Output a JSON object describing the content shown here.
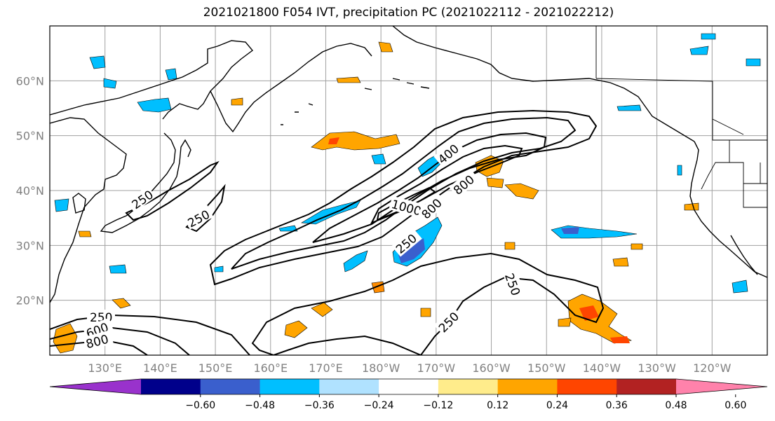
{
  "title": "2021021800 F054 IVT, precipitation PC (2021022112 - 2021022212)",
  "map": {
    "lat_labels": [
      {
        "text": "60°N",
        "lat": 60
      },
      {
        "text": "50°N",
        "lat": 50
      },
      {
        "text": "40°N",
        "lat": 40
      },
      {
        "text": "30°N",
        "lat": 30
      },
      {
        "text": "20°N",
        "lat": 20
      }
    ],
    "lon_labels": [
      {
        "text": "130°E",
        "lon": 130
      },
      {
        "text": "140°E",
        "lon": 140
      },
      {
        "text": "150°E",
        "lon": 150
      },
      {
        "text": "160°E",
        "lon": 160
      },
      {
        "text": "170°E",
        "lon": 170
      },
      {
        "text": "180°W",
        "lon": 180
      },
      {
        "text": "170°W",
        "lon": 190
      },
      {
        "text": "160°W",
        "lon": 200
      },
      {
        "text": "150°W",
        "lon": 210
      },
      {
        "text": "140°W",
        "lon": 220
      },
      {
        "text": "130°W",
        "lon": 230
      },
      {
        "text": "120°W",
        "lon": 240
      }
    ],
    "lon_range": [
      120,
      250
    ],
    "lat_range": [
      10,
      70
    ],
    "grid_color": "#a0a0a0",
    "ivt_contour_labels": [
      "250",
      "250",
      "250",
      "250",
      "250",
      "600",
      "800",
      "1000",
      "800",
      "400",
      "800",
      "600",
      "800",
      "250"
    ]
  },
  "colorbar": {
    "colors": [
      "#9932cc",
      "#00008b",
      "#3a5fcd",
      "#00bfff",
      "#b0e2ff",
      "#ffffff",
      "#ffec8b",
      "#ffa500",
      "#ff4500",
      "#b22222",
      "#ff82ab"
    ],
    "tick_labels": [
      "−0.60",
      "−0.48",
      "−0.36",
      "−0.24",
      "−0.12",
      "0.12",
      "0.24",
      "0.36",
      "0.48",
      "0.60"
    ]
  }
}
